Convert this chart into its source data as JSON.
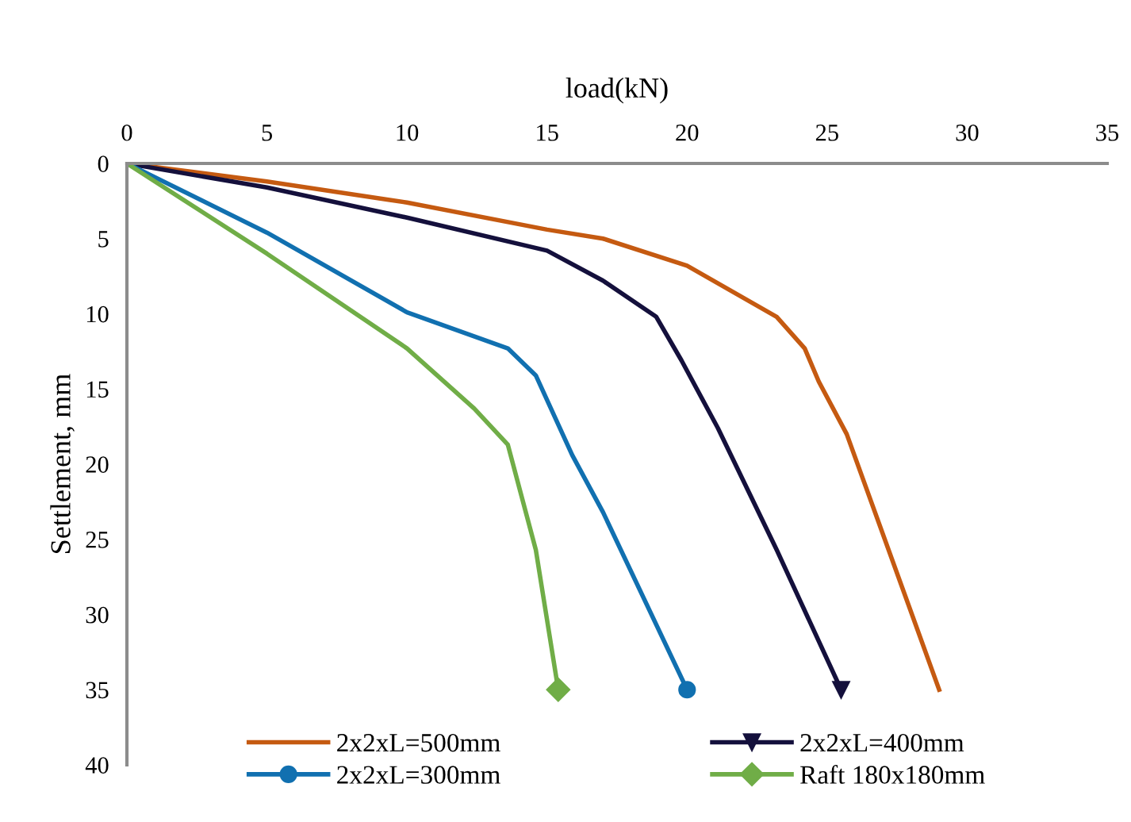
{
  "chart_data": {
    "type": "line",
    "xlabel": "load(kN)",
    "ylabel": "Settlement, mm",
    "xlim": [
      0,
      35
    ],
    "xticks": [
      0,
      5,
      10,
      15,
      20,
      25,
      30,
      35
    ],
    "ylim": [
      40,
      0
    ],
    "yticks": [
      0,
      5,
      10,
      15,
      20,
      25,
      30,
      35,
      40
    ],
    "grid": false,
    "legend": "bottom",
    "series": [
      {
        "name": "2x2xL=500mm",
        "color": "#c55a11",
        "x": [
          0,
          5,
          10,
          15,
          17,
          20,
          23.2,
          24.2,
          24.7,
          25.7,
          29.0
        ],
        "values": [
          0,
          1.2,
          2.6,
          4.4,
          5,
          6.8,
          10.2,
          12.3,
          14.5,
          18,
          35
        ]
      },
      {
        "name": "2x2xL=400mm",
        "color": "#14103c",
        "x": [
          0,
          5,
          10,
          15,
          17,
          18.9,
          19.8,
          21.1,
          23.2,
          25.5
        ],
        "values": [
          0,
          1.6,
          3.6,
          5.8,
          7.8,
          10.2,
          13.1,
          17.6,
          25.7,
          35
        ]
      },
      {
        "name": "2x2xL=300mm",
        "color": "#1170b0",
        "x": [
          0,
          5,
          10,
          13.6,
          14.6,
          15.9,
          17,
          20
        ],
        "values": [
          0,
          4.6,
          9.9,
          12.3,
          14.1,
          19.4,
          23.2,
          35
        ]
      },
      {
        "name": "Raft 180x180mm",
        "color": "#70ad47",
        "x": [
          0,
          5,
          10,
          12.4,
          13.6,
          14.0,
          14.6,
          15.4
        ],
        "values": [
          0,
          6,
          12.3,
          16.3,
          18.7,
          21.5,
          25.7,
          35
        ]
      }
    ]
  }
}
